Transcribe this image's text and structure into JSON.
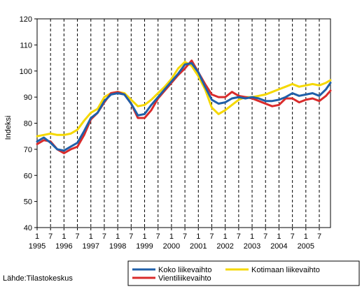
{
  "chart_data": {
    "type": "line",
    "title": "",
    "xlabel": "",
    "ylabel": "Indeksi",
    "ylim": [
      40,
      120
    ],
    "yticks": [
      40,
      50,
      60,
      70,
      80,
      90,
      100,
      110,
      120
    ],
    "x_start": "1995-01",
    "x_end": "2005-12",
    "month_tick_labels": [
      "1",
      "7"
    ],
    "year_labels": [
      "1995",
      "1996",
      "1997",
      "1998",
      "1999",
      "2000",
      "2001",
      "2002",
      "2003",
      "2004",
      "2005"
    ],
    "grid": {
      "vertical": "dashed",
      "horizontal": "none"
    },
    "legend_position": "bottom-right",
    "source": "Lähde:Tilastokeskus",
    "x": [
      "1995-01",
      "1995-04",
      "1995-07",
      "1995-10",
      "1996-01",
      "1996-04",
      "1996-07",
      "1996-10",
      "1997-01",
      "1997-04",
      "1997-07",
      "1997-10",
      "1998-01",
      "1998-04",
      "1998-07",
      "1998-10",
      "1999-01",
      "1999-04",
      "1999-07",
      "1999-10",
      "2000-01",
      "2000-04",
      "2000-07",
      "2000-10",
      "2001-01",
      "2001-04",
      "2001-07",
      "2001-10",
      "2002-01",
      "2002-04",
      "2002-07",
      "2002-10",
      "2003-01",
      "2003-04",
      "2003-07",
      "2003-10",
      "2004-01",
      "2004-04",
      "2004-07",
      "2004-10",
      "2005-01",
      "2005-04",
      "2005-07",
      "2005-10",
      "2005-12"
    ],
    "series": [
      {
        "name": "Koko liikevaihto",
        "color": "#1f5fa8",
        "values": [
          73,
          74.5,
          72.5,
          70,
          69.5,
          71,
          72.5,
          77,
          82,
          84,
          88.5,
          91,
          91.5,
          91,
          87.5,
          83,
          83.5,
          87,
          90,
          93,
          96,
          99,
          102.5,
          103,
          99.5,
          94,
          89,
          87.5,
          88,
          89.5,
          90,
          89.5,
          90,
          89.5,
          88.5,
          88.5,
          89,
          90,
          91.5,
          90.5,
          91,
          91.5,
          90.5,
          93,
          95.5
        ]
      },
      {
        "name": "Kotimaan liikevaihto",
        "color": "#f5d800",
        "values": [
          75,
          75.5,
          76,
          75.5,
          75.5,
          76,
          77.5,
          81,
          84,
          85.5,
          90,
          91.5,
          92,
          91.5,
          89,
          86.5,
          87,
          89,
          91.5,
          94,
          97,
          101,
          103.5,
          102,
          98,
          93,
          86,
          83.5,
          85,
          87,
          89,
          90,
          90,
          90.5,
          91,
          92,
          93,
          94,
          95,
          94,
          94.5,
          95,
          94.5,
          95.5,
          96.5
        ]
      },
      {
        "name": "Vientiliikevaihto",
        "color": "#d92b2b",
        "values": [
          72,
          73.5,
          73,
          70,
          68.5,
          70,
          71,
          75.5,
          81.5,
          84,
          88,
          91.5,
          92,
          91,
          87.5,
          82,
          82,
          85,
          89.5,
          92.5,
          95.5,
          98.5,
          101,
          104,
          99.5,
          95,
          91,
          90,
          90,
          92,
          90.5,
          90,
          89.5,
          88.5,
          87.5,
          86.5,
          87,
          89.5,
          89.5,
          88,
          89,
          89.5,
          88.5,
          90.5,
          92.5
        ]
      }
    ]
  }
}
